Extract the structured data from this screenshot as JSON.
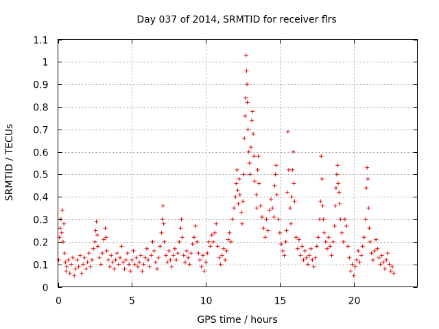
{
  "chart_data": {
    "type": "scatter",
    "title": "Day 037 of 2014, SRMTID for receiver flrs",
    "xlabel": "GPS time / hours",
    "ylabel": "SRMTID / TECUs",
    "xlim": [
      0,
      24.3
    ],
    "ylim": [
      0,
      1.1
    ],
    "xticks": [
      0,
      5,
      10,
      15,
      20
    ],
    "xtick_labels": [
      "0",
      "5",
      "10",
      "15",
      "20"
    ],
    "yticks": [
      0,
      0.1,
      0.2,
      0.3,
      0.4,
      0.5,
      0.6,
      0.7,
      0.8,
      0.9,
      1.0,
      1.1
    ],
    "ytick_labels": [
      "0",
      "0.1",
      "0.2",
      "0.3",
      "0.4",
      "0.5",
      "0.6",
      "0.7",
      "0.8",
      "0.9",
      "1",
      "1.1"
    ],
    "grid": true,
    "marker": "+",
    "color": "#e00000",
    "series": [
      {
        "name": "flrs",
        "points": [
          [
            0.05,
            0.12
          ],
          [
            0.1,
            0.22
          ],
          [
            0.15,
            0.26
          ],
          [
            0.2,
            0.3
          ],
          [
            0.25,
            0.24
          ],
          [
            0.3,
            0.34
          ],
          [
            0.35,
            0.2
          ],
          [
            0.4,
            0.28
          ],
          [
            0.45,
            0.15
          ],
          [
            0.5,
            0.11
          ],
          [
            0.55,
            0.07
          ],
          [
            0.6,
            0.09
          ],
          [
            0.7,
            0.12
          ],
          [
            0.8,
            0.06
          ],
          [
            0.9,
            0.1
          ],
          [
            1.0,
            0.13
          ],
          [
            1.1,
            0.05
          ],
          [
            1.2,
            0.08
          ],
          [
            1.3,
            0.12
          ],
          [
            1.4,
            0.09
          ],
          [
            1.5,
            0.14
          ],
          [
            1.6,
            0.06
          ],
          [
            1.7,
            0.1
          ],
          [
            1.8,
            0.13
          ],
          [
            1.9,
            0.08
          ],
          [
            2.0,
            0.11
          ],
          [
            2.1,
            0.15
          ],
          [
            2.2,
            0.09
          ],
          [
            2.3,
            0.12
          ],
          [
            2.4,
            0.17
          ],
          [
            2.5,
            0.2
          ],
          [
            2.55,
            0.25
          ],
          [
            2.6,
            0.29
          ],
          [
            2.65,
            0.23
          ],
          [
            2.7,
            0.18
          ],
          [
            2.8,
            0.13
          ],
          [
            2.9,
            0.1
          ],
          [
            3.0,
            0.15
          ],
          [
            3.1,
            0.21
          ],
          [
            3.2,
            0.26
          ],
          [
            3.25,
            0.22
          ],
          [
            3.3,
            0.16
          ],
          [
            3.4,
            0.12
          ],
          [
            3.5,
            0.09
          ],
          [
            3.6,
            0.14
          ],
          [
            3.7,
            0.11
          ],
          [
            3.8,
            0.08
          ],
          [
            3.9,
            0.12
          ],
          [
            4.0,
            0.15
          ],
          [
            4.1,
            0.1
          ],
          [
            4.2,
            0.13
          ],
          [
            4.3,
            0.18
          ],
          [
            4.4,
            0.11
          ],
          [
            4.5,
            0.08
          ],
          [
            4.6,
            0.12
          ],
          [
            4.7,
            0.15
          ],
          [
            4.8,
            0.1
          ],
          [
            4.9,
            0.07
          ],
          [
            5.0,
            0.12
          ],
          [
            5.1,
            0.16
          ],
          [
            5.2,
            0.1
          ],
          [
            5.3,
            0.13
          ],
          [
            5.4,
            0.09
          ],
          [
            5.5,
            0.11
          ],
          [
            5.6,
            0.14
          ],
          [
            5.7,
            0.07
          ],
          [
            5.8,
            0.1
          ],
          [
            5.9,
            0.13
          ],
          [
            6.0,
            0.17
          ],
          [
            6.1,
            0.12
          ],
          [
            6.2,
            0.09
          ],
          [
            6.3,
            0.14
          ],
          [
            6.4,
            0.2
          ],
          [
            6.5,
            0.16
          ],
          [
            6.6,
            0.11
          ],
          [
            6.7,
            0.08
          ],
          [
            6.8,
            0.13
          ],
          [
            6.9,
            0.18
          ],
          [
            7.0,
            0.24
          ],
          [
            7.05,
            0.3
          ],
          [
            7.1,
            0.36
          ],
          [
            7.15,
            0.28
          ],
          [
            7.2,
            0.2
          ],
          [
            7.3,
            0.14
          ],
          [
            7.4,
            0.11
          ],
          [
            7.5,
            0.16
          ],
          [
            7.6,
            0.12
          ],
          [
            7.7,
            0.09
          ],
          [
            7.8,
            0.14
          ],
          [
            7.9,
            0.17
          ],
          [
            8.0,
            0.12
          ],
          [
            8.1,
            0.15
          ],
          [
            8.2,
            0.2
          ],
          [
            8.3,
            0.26
          ],
          [
            8.35,
            0.3
          ],
          [
            8.4,
            0.22
          ],
          [
            8.5,
            0.14
          ],
          [
            8.6,
            0.11
          ],
          [
            8.7,
            0.16
          ],
          [
            8.8,
            0.13
          ],
          [
            8.9,
            0.1
          ],
          [
            9.0,
            0.15
          ],
          [
            9.1,
            0.19
          ],
          [
            9.2,
            0.22
          ],
          [
            9.3,
            0.27
          ],
          [
            9.4,
            0.2
          ],
          [
            9.5,
            0.15
          ],
          [
            9.6,
            0.12
          ],
          [
            9.7,
            0.09
          ],
          [
            9.8,
            0.14
          ],
          [
            9.9,
            0.07
          ],
          [
            10.0,
            0.11
          ],
          [
            10.1,
            0.15
          ],
          [
            10.2,
            0.2
          ],
          [
            10.3,
            0.18
          ],
          [
            10.4,
            0.23
          ],
          [
            10.5,
            0.2
          ],
          [
            10.6,
            0.24
          ],
          [
            10.7,
            0.28
          ],
          [
            10.8,
            0.18
          ],
          [
            10.9,
            0.13
          ],
          [
            11.0,
            0.1
          ],
          [
            11.1,
            0.14
          ],
          [
            11.2,
            0.17
          ],
          [
            11.3,
            0.12
          ],
          [
            11.4,
            0.16
          ],
          [
            11.5,
            0.21
          ],
          [
            11.6,
            0.24
          ],
          [
            11.7,
            0.2
          ],
          [
            11.8,
            0.3
          ],
          [
            11.9,
            0.35
          ],
          [
            12.0,
            0.4
          ],
          [
            12.05,
            0.46
          ],
          [
            12.1,
            0.52
          ],
          [
            12.15,
            0.43
          ],
          [
            12.2,
            0.37
          ],
          [
            12.25,
            0.48
          ],
          [
            12.3,
            0.41
          ],
          [
            12.4,
            0.33
          ],
          [
            12.45,
            0.28
          ],
          [
            12.5,
            0.38
          ],
          [
            12.55,
            0.5
          ],
          [
            12.6,
            0.66
          ],
          [
            12.65,
            0.76
          ],
          [
            12.7,
            0.84
          ],
          [
            12.72,
            1.03
          ],
          [
            12.75,
            0.96
          ],
          [
            12.78,
            0.9
          ],
          [
            12.8,
            0.82
          ],
          [
            12.85,
            0.7
          ],
          [
            12.9,
            0.6
          ],
          [
            12.95,
            0.55
          ],
          [
            13.0,
            0.5
          ],
          [
            13.05,
            0.62
          ],
          [
            13.1,
            0.74
          ],
          [
            13.15,
            0.78
          ],
          [
            13.2,
            0.68
          ],
          [
            13.25,
            0.58
          ],
          [
            13.3,
            0.47
          ],
          [
            13.4,
            0.41
          ],
          [
            13.45,
            0.35
          ],
          [
            13.5,
            0.52
          ],
          [
            13.55,
            0.58
          ],
          [
            13.6,
            0.46
          ],
          [
            13.7,
            0.36
          ],
          [
            13.8,
            0.31
          ],
          [
            13.9,
            0.26
          ],
          [
            14.0,
            0.22
          ],
          [
            14.1,
            0.3
          ],
          [
            14.2,
            0.25
          ],
          [
            14.3,
            0.34
          ],
          [
            14.4,
            0.39
          ],
          [
            14.5,
            0.35
          ],
          [
            14.6,
            0.31
          ],
          [
            14.65,
            0.45
          ],
          [
            14.7,
            0.5
          ],
          [
            14.75,
            0.54
          ],
          [
            14.8,
            0.41
          ],
          [
            14.9,
            0.3
          ],
          [
            15.0,
            0.24
          ],
          [
            15.1,
            0.19
          ],
          [
            15.2,
            0.16
          ],
          [
            15.3,
            0.14
          ],
          [
            15.4,
            0.2
          ],
          [
            15.45,
            0.25
          ],
          [
            15.5,
            0.42
          ],
          [
            15.55,
            0.69
          ],
          [
            15.6,
            0.52
          ],
          [
            15.7,
            0.35
          ],
          [
            15.75,
            0.28
          ],
          [
            15.8,
            0.4
          ],
          [
            15.85,
            0.52
          ],
          [
            15.9,
            0.6
          ],
          [
            15.95,
            0.46
          ],
          [
            16.0,
            0.38
          ],
          [
            16.1,
            0.22
          ],
          [
            16.2,
            0.17
          ],
          [
            16.3,
            0.21
          ],
          [
            16.4,
            0.14
          ],
          [
            16.5,
            0.18
          ],
          [
            16.6,
            0.12
          ],
          [
            16.7,
            0.16
          ],
          [
            16.8,
            0.13
          ],
          [
            16.9,
            0.1
          ],
          [
            17.0,
            0.14
          ],
          [
            17.1,
            0.17
          ],
          [
            17.2,
            0.12
          ],
          [
            17.3,
            0.09
          ],
          [
            17.4,
            0.13
          ],
          [
            17.5,
            0.18
          ],
          [
            17.6,
            0.22
          ],
          [
            17.7,
            0.3
          ],
          [
            17.75,
            0.38
          ],
          [
            17.8,
            0.58
          ],
          [
            17.85,
            0.48
          ],
          [
            17.9,
            0.36
          ],
          [
            17.95,
            0.3
          ],
          [
            18.0,
            0.24
          ],
          [
            18.1,
            0.2
          ],
          [
            18.2,
            0.17
          ],
          [
            18.3,
            0.22
          ],
          [
            18.4,
            0.18
          ],
          [
            18.5,
            0.14
          ],
          [
            18.6,
            0.2
          ],
          [
            18.7,
            0.27
          ],
          [
            18.75,
            0.36
          ],
          [
            18.8,
            0.44
          ],
          [
            18.85,
            0.5
          ],
          [
            18.9,
            0.54
          ],
          [
            18.95,
            0.46
          ],
          [
            19.0,
            0.42
          ],
          [
            19.05,
            0.37
          ],
          [
            19.1,
            0.3
          ],
          [
            19.2,
            0.24
          ],
          [
            19.3,
            0.2
          ],
          [
            19.4,
            0.3
          ],
          [
            19.5,
            0.27
          ],
          [
            19.6,
            0.18
          ],
          [
            19.7,
            0.13
          ],
          [
            19.8,
            0.07
          ],
          [
            19.9,
            0.1
          ],
          [
            20.0,
            0.05
          ],
          [
            20.1,
            0.09
          ],
          [
            20.2,
            0.12
          ],
          [
            20.3,
            0.16
          ],
          [
            20.4,
            0.11
          ],
          [
            20.5,
            0.14
          ],
          [
            20.6,
            0.18
          ],
          [
            20.7,
            0.22
          ],
          [
            20.8,
            0.3
          ],
          [
            20.85,
            0.44
          ],
          [
            20.9,
            0.53
          ],
          [
            20.95,
            0.48
          ],
          [
            21.0,
            0.35
          ],
          [
            21.05,
            0.26
          ],
          [
            21.1,
            0.2
          ],
          [
            21.2,
            0.15
          ],
          [
            21.3,
            0.12
          ],
          [
            21.4,
            0.16
          ],
          [
            21.5,
            0.21
          ],
          [
            21.6,
            0.17
          ],
          [
            21.7,
            0.13
          ],
          [
            21.8,
            0.1
          ],
          [
            21.9,
            0.14
          ],
          [
            22.0,
            0.11
          ],
          [
            22.1,
            0.08
          ],
          [
            22.2,
            0.12
          ],
          [
            22.3,
            0.15
          ],
          [
            22.4,
            0.1
          ],
          [
            22.5,
            0.07
          ],
          [
            22.6,
            0.09
          ],
          [
            22.7,
            0.06
          ]
        ]
      }
    ]
  }
}
